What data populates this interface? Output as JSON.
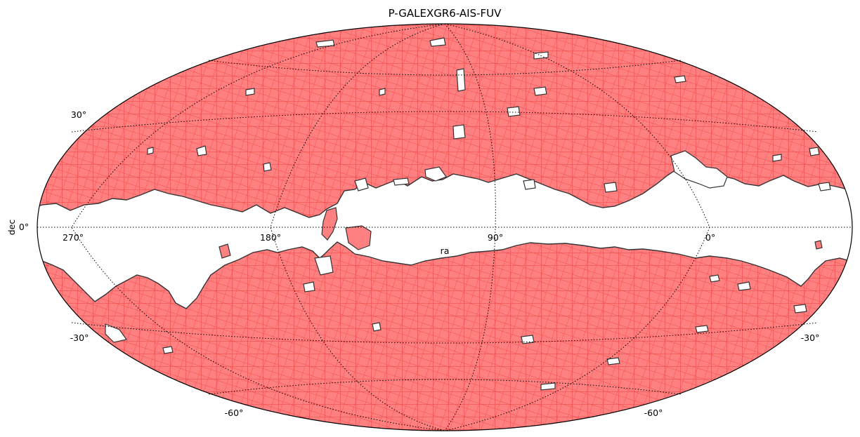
{
  "title": "P-GALEXGR6-AIS-FUV",
  "axes": {
    "xlabel": "ra",
    "ylabel": "dec",
    "projection": "mollweide",
    "grid": true,
    "ra_ticks": [
      "270°",
      "180°",
      "90°",
      "0°"
    ],
    "dec_ticks": {
      "p30": "30°",
      "zero": "0°",
      "m30_left": "-30°",
      "m30_right": "-30°",
      "m60_left": "-60°",
      "m60_right": "-60°"
    }
  },
  "coverage": {
    "fill_color": "#ff8080",
    "edge_color": "#ee4444",
    "outline_color": "#333333",
    "uncovered_band": "galactic plane (white, not observed)"
  }
}
